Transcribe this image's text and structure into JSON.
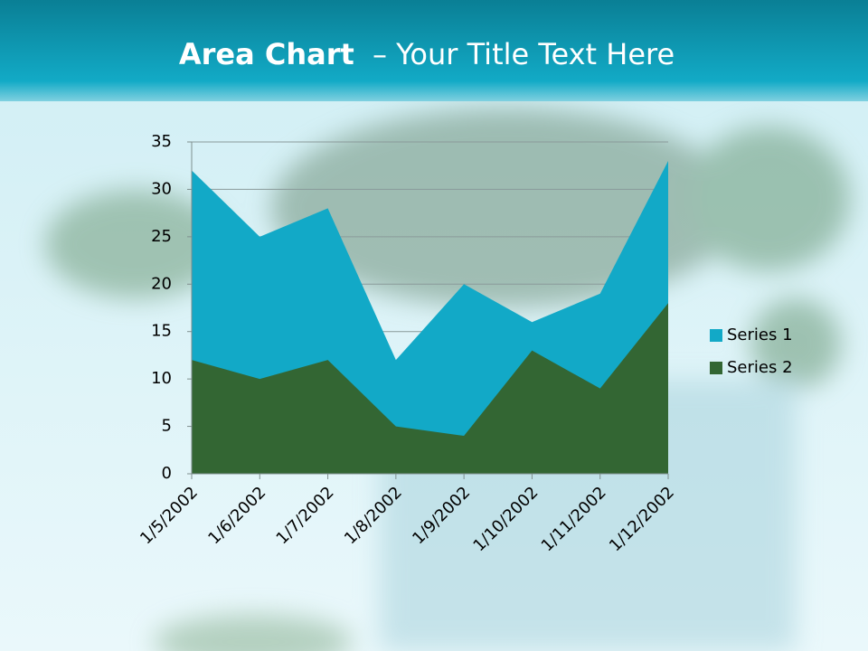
{
  "chart_data": {
    "type": "area",
    "title": [
      "Area Chart",
      "– Your Title Text Here"
    ],
    "categories": [
      "1/5/2002",
      "1/6/2002",
      "1/7/2002",
      "1/8/2002",
      "1/9/2002",
      "1/10/2002",
      "1/11/2002",
      "1/12/2002"
    ],
    "series": [
      {
        "name": "Series 1",
        "color": "#12a9c7",
        "values": [
          32,
          25,
          28,
          12,
          20,
          16,
          19,
          33
        ]
      },
      {
        "name": "Series 2",
        "color": "#336633",
        "values": [
          12,
          10,
          12,
          5,
          4,
          13,
          9,
          18
        ]
      }
    ],
    "ylim": [
      0,
      35
    ],
    "yticks": [
      0,
      5,
      10,
      15,
      20,
      25,
      30,
      35
    ],
    "grid": true,
    "legend": "right"
  }
}
